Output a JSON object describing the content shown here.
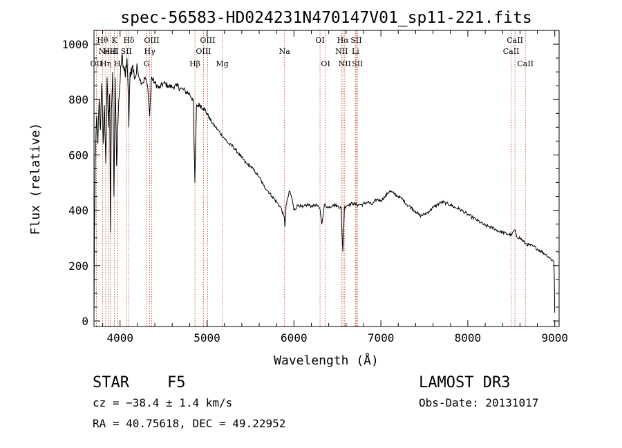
{
  "chart_data": {
    "type": "line",
    "title": "spec-56583-HD024231N470147V01_sp11-221.fits",
    "xlabel": "Wavelength (Å)",
    "ylabel": "Flux (relative)",
    "xlim": [
      3700,
      9050
    ],
    "ylim": [
      -20,
      1050
    ],
    "xticks": [
      {
        "value": 4000,
        "label": "4000"
      },
      {
        "value": 5000,
        "label": "5000"
      },
      {
        "value": 6000,
        "label": "6000"
      },
      {
        "value": 7000,
        "label": "7000"
      },
      {
        "value": 8000,
        "label": "8000"
      },
      {
        "value": 9000,
        "label": "9000"
      }
    ],
    "yticks": [
      {
        "value": 0,
        "label": "0"
      },
      {
        "value": 200,
        "label": "200"
      },
      {
        "value": 400,
        "label": "400"
      },
      {
        "value": 600,
        "label": "600"
      },
      {
        "value": 800,
        "label": "800"
      },
      {
        "value": 1000,
        "label": "1000"
      }
    ],
    "series": [
      {
        "name": "flux",
        "points": [
          [
            3700,
            0
          ],
          [
            3705,
            320
          ],
          [
            3715,
            580
          ],
          [
            3730,
            740
          ],
          [
            3745,
            640
          ],
          [
            3760,
            800
          ],
          [
            3775,
            690
          ],
          [
            3790,
            860
          ],
          [
            3805,
            640
          ],
          [
            3820,
            780
          ],
          [
            3835,
            570
          ],
          [
            3850,
            880
          ],
          [
            3865,
            700
          ],
          [
            3880,
            820
          ],
          [
            3890,
            320
          ],
          [
            3900,
            760
          ],
          [
            3915,
            900
          ],
          [
            3930,
            450
          ],
          [
            3945,
            880
          ],
          [
            3960,
            560
          ],
          [
            3970,
            690
          ],
          [
            3985,
            800
          ],
          [
            4000,
            860
          ],
          [
            4020,
            960
          ],
          [
            4040,
            920
          ],
          [
            4060,
            880
          ],
          [
            4080,
            950
          ],
          [
            4090,
            860
          ],
          [
            4101,
            700
          ],
          [
            4115,
            900
          ],
          [
            4140,
            920
          ],
          [
            4170,
            880
          ],
          [
            4200,
            910
          ],
          [
            4230,
            870
          ],
          [
            4260,
            860
          ],
          [
            4290,
            880
          ],
          [
            4320,
            840
          ],
          [
            4340,
            740
          ],
          [
            4360,
            880
          ],
          [
            4400,
            860
          ],
          [
            4450,
            840
          ],
          [
            4500,
            860
          ],
          [
            4550,
            850
          ],
          [
            4600,
            845
          ],
          [
            4650,
            850
          ],
          [
            4700,
            840
          ],
          [
            4750,
            830
          ],
          [
            4800,
            820
          ],
          [
            4840,
            800
          ],
          [
            4861,
            500
          ],
          [
            4880,
            780
          ],
          [
            4920,
            780
          ],
          [
            4960,
            770
          ],
          [
            5000,
            750
          ],
          [
            5050,
            720
          ],
          [
            5100,
            700
          ],
          [
            5150,
            680
          ],
          [
            5200,
            660
          ],
          [
            5250,
            640
          ],
          [
            5300,
            630
          ],
          [
            5350,
            610
          ],
          [
            5400,
            590
          ],
          [
            5450,
            570
          ],
          [
            5500,
            560
          ],
          [
            5550,
            540
          ],
          [
            5600,
            520
          ],
          [
            5650,
            490
          ],
          [
            5700,
            470
          ],
          [
            5750,
            450
          ],
          [
            5800,
            430
          ],
          [
            5850,
            410
          ],
          [
            5890,
            370
          ],
          [
            5896,
            340
          ],
          [
            5910,
            420
          ],
          [
            5950,
            470
          ],
          [
            5980,
            440
          ],
          [
            6000,
            400
          ],
          [
            6050,
            420
          ],
          [
            6100,
            410
          ],
          [
            6150,
            420
          ],
          [
            6200,
            415
          ],
          [
            6250,
            420
          ],
          [
            6300,
            405
          ],
          [
            6320,
            350
          ],
          [
            6350,
            420
          ],
          [
            6400,
            410
          ],
          [
            6450,
            420
          ],
          [
            6500,
            415
          ],
          [
            6540,
            410
          ],
          [
            6563,
            250
          ],
          [
            6580,
            410
          ],
          [
            6620,
            420
          ],
          [
            6680,
            425
          ],
          [
            6720,
            420
          ],
          [
            6780,
            420
          ],
          [
            6850,
            430
          ],
          [
            6900,
            420
          ],
          [
            6950,
            440
          ],
          [
            7000,
            435
          ],
          [
            7050,
            450
          ],
          [
            7100,
            470
          ],
          [
            7150,
            460
          ],
          [
            7200,
            450
          ],
          [
            7250,
            440
          ],
          [
            7300,
            420
          ],
          [
            7350,
            410
          ],
          [
            7400,
            395
          ],
          [
            7450,
            380
          ],
          [
            7500,
            385
          ],
          [
            7550,
            395
          ],
          [
            7600,
            410
          ],
          [
            7650,
            420
          ],
          [
            7700,
            430
          ],
          [
            7750,
            425
          ],
          [
            7800,
            420
          ],
          [
            7850,
            410
          ],
          [
            7900,
            405
          ],
          [
            7950,
            395
          ],
          [
            8000,
            385
          ],
          [
            8050,
            375
          ],
          [
            8100,
            365
          ],
          [
            8150,
            355
          ],
          [
            8200,
            345
          ],
          [
            8250,
            340
          ],
          [
            8300,
            335
          ],
          [
            8350,
            325
          ],
          [
            8400,
            320
          ],
          [
            8450,
            315
          ],
          [
            8500,
            310
          ],
          [
            8542,
            330
          ],
          [
            8560,
            305
          ],
          [
            8600,
            300
          ],
          [
            8662,
            280
          ],
          [
            8700,
            275
          ],
          [
            8750,
            270
          ],
          [
            8800,
            260
          ],
          [
            8850,
            250
          ],
          [
            8900,
            240
          ],
          [
            8950,
            225
          ],
          [
            8990,
            215
          ],
          [
            8995,
            150
          ],
          [
            9000,
            30
          ]
        ]
      }
    ],
    "line_markers": [
      {
        "wavelength": 3727,
        "label": "OII",
        "row": 3
      },
      {
        "wavelength": 3798,
        "label": "Hθ",
        "row": 1
      },
      {
        "wavelength": 3835,
        "label": "Hη",
        "row": 3
      },
      {
        "wavelength": 3869,
        "label": "NeIII",
        "row": 2
      },
      {
        "wavelength": 3889,
        "label": "HeI",
        "row": 2
      },
      {
        "wavelength": 3934,
        "label": "K",
        "row": 1
      },
      {
        "wavelength": 3969,
        "label": "H",
        "row": 3
      },
      {
        "wavelength": 4072,
        "label": "SII",
        "row": 2
      },
      {
        "wavelength": 4102,
        "label": "Hδ",
        "row": 1
      },
      {
        "wavelength": 4305,
        "label": "G",
        "row": 3
      },
      {
        "wavelength": 4341,
        "label": "Hγ",
        "row": 2
      },
      {
        "wavelength": 4363,
        "label": "OIII",
        "row": 1
      },
      {
        "wavelength": 4861,
        "label": "Hβ",
        "row": 3
      },
      {
        "wavelength": 4959,
        "label": "OIII",
        "row": 2
      },
      {
        "wavelength": 5007,
        "label": "OIII",
        "row": 1
      },
      {
        "wavelength": 5175,
        "label": "Mg",
        "row": 3
      },
      {
        "wavelength": 5892,
        "label": "Na",
        "row": 2
      },
      {
        "wavelength": 6300,
        "label": "OI",
        "row": 1
      },
      {
        "wavelength": 6364,
        "label": "OI",
        "row": 3
      },
      {
        "wavelength": 6548,
        "label": "NII",
        "row": 2
      },
      {
        "wavelength": 6563,
        "label": "Hα",
        "row": 1
      },
      {
        "wavelength": 6584,
        "label": "NII",
        "row": 3
      },
      {
        "wavelength": 6708,
        "label": "Li",
        "row": 2
      },
      {
        "wavelength": 6717,
        "label": "SII",
        "row": 1
      },
      {
        "wavelength": 6731,
        "label": "SII",
        "row": 3
      },
      {
        "wavelength": 8498,
        "label": "CaII",
        "row": 2
      },
      {
        "wavelength": 8542,
        "label": "CaII",
        "row": 1
      },
      {
        "wavelength": 8662,
        "label": "CaII",
        "row": 3
      }
    ],
    "colors": {
      "spectrum": "#000000",
      "marker_line": "#c0392b",
      "axes": "#000000",
      "background": "#ffffff"
    }
  },
  "info": {
    "object_class": "STAR",
    "subclass": "F5",
    "survey": "LAMOST DR3",
    "redshift_text": "cz = −38.4 ± 1.4 km/s",
    "obs_date": "Obs-Date: 20131017",
    "coords_text": "RA =  40.75618, DEC =  49.22952"
  }
}
